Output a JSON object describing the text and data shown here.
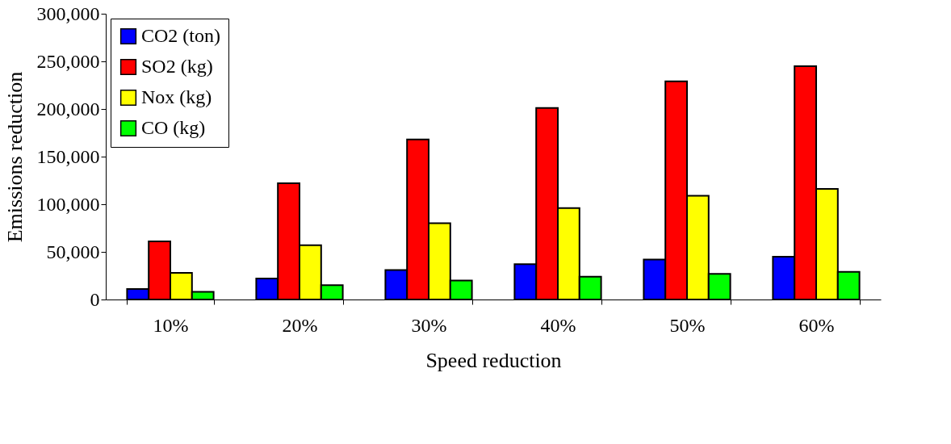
{
  "chart_data": {
    "type": "bar",
    "xlabel": "Speed reduction",
    "ylabel": "Emissions  reduction",
    "categories": [
      "10%",
      "20%",
      "30%",
      "40%",
      "50%",
      "60%"
    ],
    "series": [
      {
        "name": "CO2 (ton)",
        "color": "#0000ff",
        "values": [
          11000,
          22000,
          31000,
          37000,
          42000,
          45000
        ]
      },
      {
        "name": "SO2 (kg)",
        "color": "#ff0000",
        "values": [
          61000,
          122000,
          168000,
          201000,
          229000,
          245000
        ]
      },
      {
        "name": "Nox (kg)",
        "color": "#ffff00",
        "values": [
          28000,
          57000,
          80000,
          96000,
          109000,
          116000
        ]
      },
      {
        "name": "CO (kg)",
        "color": "#00ff00",
        "values": [
          8000,
          15000,
          20000,
          24000,
          27000,
          29000
        ]
      }
    ],
    "ylim": [
      0,
      300000
    ],
    "yticks": [
      0,
      {
        "value": 50000,
        "label": "50,000"
      },
      {
        "value": 100000,
        "label": "100,000"
      },
      {
        "value": 150000,
        "label": "150,000"
      },
      {
        "value": 200000,
        "label": "200,000"
      },
      {
        "value": 250000,
        "label": "250,000"
      },
      {
        "value": 300000,
        "label": "300,000"
      }
    ],
    "grid": false,
    "legend": "top left"
  }
}
